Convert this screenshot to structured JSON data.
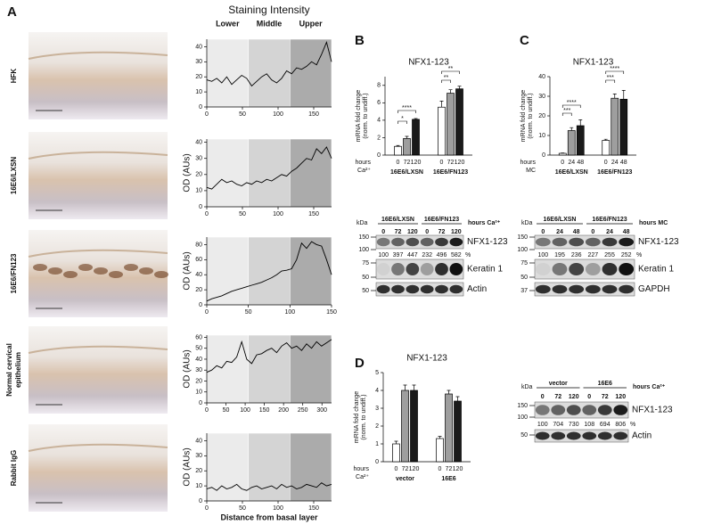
{
  "panels": {
    "a": "A",
    "b": "B",
    "c": "C",
    "d": "D"
  },
  "panel_a": {
    "header": "Staining Intensity",
    "zones": [
      "Lower",
      "Middle",
      "Upper"
    ],
    "xlabel": "Distance from basal layer",
    "row_labels": [
      [
        "HFK"
      ],
      [
        "16E6/LXSN"
      ],
      [
        "16E6/FN123"
      ],
      [
        "Normal cervical",
        "epithelium"
      ],
      [
        "Rabbit IgG"
      ]
    ]
  },
  "chart_data": [
    {
      "type": "line",
      "x": [
        0,
        7,
        14,
        21,
        28,
        35,
        42,
        49,
        56,
        63,
        70,
        77,
        84,
        91,
        98,
        105,
        112,
        119,
        126,
        133,
        140,
        147,
        154,
        161,
        168,
        175
      ],
      "series": [
        {
          "color": "#000000",
          "values": [
            18,
            17,
            19,
            16,
            20,
            15,
            18,
            21,
            19,
            14,
            17,
            20,
            22,
            18,
            16,
            19,
            24,
            22,
            26,
            25,
            27,
            30,
            28,
            35,
            43,
            30
          ]
        }
      ],
      "xlim": [
        0,
        175
      ],
      "ylim": [
        0,
        45
      ],
      "xticks": [
        0,
        50,
        100,
        150
      ],
      "yticks": [
        0,
        10,
        20,
        30,
        40
      ]
    },
    {
      "type": "line",
      "ylabel": "OD (AUs)",
      "x": [
        0,
        7,
        14,
        21,
        28,
        35,
        42,
        49,
        56,
        63,
        70,
        77,
        84,
        91,
        98,
        105,
        112,
        119,
        126,
        133,
        140,
        147,
        154,
        161,
        168,
        175
      ],
      "series": [
        {
          "color": "#000000",
          "values": [
            12,
            11,
            14,
            17,
            15,
            16,
            14,
            13,
            15,
            14,
            16,
            15,
            17,
            16,
            18,
            20,
            19,
            22,
            24,
            27,
            30,
            29,
            36,
            33,
            37,
            30
          ]
        }
      ],
      "xlim": [
        0,
        175
      ],
      "ylim": [
        0,
        42
      ],
      "xticks": [
        0,
        50,
        100,
        150
      ],
      "yticks": [
        0,
        10,
        20,
        30,
        40
      ]
    },
    {
      "type": "line",
      "ylabel": "OD (AUs)",
      "x": [
        0,
        6,
        12,
        18,
        24,
        30,
        36,
        42,
        48,
        54,
        60,
        66,
        72,
        78,
        84,
        90,
        96,
        102,
        108,
        114,
        120,
        126,
        132,
        138,
        144,
        150
      ],
      "series": [
        {
          "color": "#000000",
          "values": [
            5,
            8,
            10,
            12,
            15,
            18,
            20,
            22,
            24,
            26,
            28,
            30,
            33,
            36,
            40,
            45,
            46,
            48,
            60,
            82,
            75,
            84,
            80,
            78,
            60,
            40
          ]
        }
      ],
      "xlim": [
        0,
        150
      ],
      "ylim": [
        0,
        90
      ],
      "xticks": [
        0,
        50,
        100,
        150
      ],
      "yticks": [
        0,
        20,
        40,
        60,
        80
      ]
    },
    {
      "type": "line",
      "ylabel": "OD (AUs)",
      "x": [
        0,
        13,
        26,
        39,
        52,
        65,
        78,
        91,
        104,
        117,
        130,
        143,
        156,
        169,
        182,
        195,
        208,
        221,
        234,
        247,
        260,
        273,
        286,
        299,
        312,
        325
      ],
      "series": [
        {
          "color": "#000000",
          "values": [
            28,
            30,
            34,
            32,
            38,
            37,
            42,
            56,
            40,
            36,
            44,
            45,
            48,
            50,
            46,
            52,
            55,
            50,
            52,
            48,
            54,
            50,
            56,
            52,
            55,
            58
          ]
        }
      ],
      "xlim": [
        0,
        325
      ],
      "ylim": [
        0,
        62
      ],
      "xticks": [
        0,
        50,
        100,
        150,
        200,
        250,
        300
      ],
      "yticks": [
        0,
        10,
        20,
        30,
        40,
        50,
        60
      ]
    },
    {
      "type": "line",
      "ylabel": "OD (AUs)",
      "x": [
        0,
        7,
        14,
        21,
        28,
        35,
        42,
        49,
        56,
        63,
        70,
        77,
        84,
        91,
        98,
        105,
        112,
        119,
        126,
        133,
        140,
        147,
        154,
        161,
        168,
        175
      ],
      "series": [
        {
          "color": "#000000",
          "values": [
            8,
            9,
            7,
            10,
            8,
            9,
            11,
            8,
            7,
            9,
            10,
            8,
            9,
            10,
            8,
            11,
            9,
            10,
            8,
            9,
            11,
            10,
            9,
            12,
            10,
            11
          ]
        }
      ],
      "xlim": [
        0,
        175
      ],
      "ylim": [
        0,
        45
      ],
      "xticks": [
        0,
        50,
        100,
        150
      ],
      "yticks": [
        0,
        10,
        20,
        30,
        40
      ]
    },
    {
      "type": "bar",
      "title": "NFX1-123",
      "ylabel": [
        "mRNA fold change",
        "(norm. to undiff.)"
      ],
      "groups": [
        "16E6/LXSN",
        "16E6/FN123"
      ],
      "x_prefix": [
        "hours",
        "Ca²⁺"
      ],
      "series": [
        {
          "name": "0",
          "color": "#ffffff",
          "values": [
            1,
            5.5
          ],
          "errors": [
            0.1,
            0.7
          ]
        },
        {
          "name": "72",
          "color": "#9e9e9e",
          "values": [
            1.9,
            7.1
          ],
          "errors": [
            0.25,
            0.4
          ]
        },
        {
          "name": "120",
          "color": "#1a1a1a",
          "values": [
            4.1,
            7.6
          ],
          "errors": [
            0.1,
            0.3
          ]
        }
      ],
      "annotations": [
        "****",
        "*",
        "**",
        "**"
      ],
      "ylim": [
        0,
        9
      ],
      "yticks": [
        0,
        2,
        4,
        6,
        8
      ]
    },
    {
      "type": "bar",
      "title": "NFX1-123",
      "ylabel": [
        "mRNA fold change",
        "(norm. to undiff.)"
      ],
      "groups": [
        "16E6/LXSN",
        "16E6/FN123"
      ],
      "x_prefix": [
        "hours",
        "MC"
      ],
      "series": [
        {
          "name": "0",
          "color": "#ffffff",
          "values": [
            0.9,
            7.5
          ],
          "errors": [
            0.2,
            0.6
          ]
        },
        {
          "name": "24",
          "color": "#9e9e9e",
          "values": [
            12.5,
            29
          ],
          "errors": [
            1.5,
            2.2
          ]
        },
        {
          "name": "48",
          "color": "#1a1a1a",
          "values": [
            15,
            28.5
          ],
          "errors": [
            3,
            4.5
          ]
        }
      ],
      "annotations": [
        "****",
        "***",
        "****",
        "***"
      ],
      "ylim": [
        0,
        40
      ],
      "yticks": [
        0,
        10,
        20,
        30,
        40
      ]
    },
    {
      "type": "bar",
      "title": "NFX1-123",
      "ylabel": [
        "mRNA fold change",
        "(norm. to undiff.)"
      ],
      "groups": [
        "vector",
        "16E6"
      ],
      "x_prefix": [
        "hours",
        "Ca²⁺"
      ],
      "series": [
        {
          "name": "0",
          "color": "#ffffff",
          "values": [
            1,
            1.3
          ],
          "errors": [
            0.15,
            0.12
          ]
        },
        {
          "name": "72",
          "color": "#9e9e9e",
          "values": [
            4,
            3.8
          ],
          "errors": [
            0.3,
            0.2
          ]
        },
        {
          "name": "120",
          "color": "#1a1a1a",
          "values": [
            4,
            3.4
          ],
          "errors": [
            0.3,
            0.25
          ]
        }
      ],
      "ylim": [
        0,
        5
      ],
      "yticks": [
        0,
        1,
        2,
        3,
        4,
        5
      ]
    }
  ],
  "blots": [
    {
      "kda_label": "kDa",
      "groups": [
        "16E6/LXSN",
        "16E6/FN123"
      ],
      "condition": "hours Ca²⁺",
      "lanes": [
        "0",
        "72",
        "120",
        "0",
        "72",
        "120"
      ],
      "markers": [
        150,
        100,
        75,
        50,
        50
      ],
      "bands": [
        "NFX1-123",
        "Keratin 1",
        "Actin"
      ],
      "quant": [
        100,
        397,
        447,
        232,
        496,
        582
      ],
      "quant_unit": "%"
    },
    {
      "kda_label": "kDa",
      "groups": [
        "16E6/LXSN",
        "16E6/FN123"
      ],
      "condition": "hours MC",
      "lanes": [
        "0",
        "24",
        "48",
        "0",
        "24",
        "48"
      ],
      "markers": [
        150,
        100,
        75,
        50,
        37
      ],
      "bands": [
        "NFX1-123",
        "Keratin 1",
        "GAPDH"
      ],
      "quant": [
        100,
        195,
        236,
        227,
        255,
        252
      ],
      "quant_unit": "%"
    },
    {
      "kda_label": "kDa",
      "groups": [
        "vector",
        "16E6"
      ],
      "condition": "hours Ca²⁺",
      "lanes": [
        "0",
        "72",
        "120",
        "0",
        "72",
        "120"
      ],
      "markers": [
        150,
        100,
        50
      ],
      "bands": [
        "NFX1-123",
        "Actin"
      ],
      "quant": [
        100,
        704,
        730,
        108,
        694,
        806
      ],
      "quant_unit": "%"
    }
  ]
}
